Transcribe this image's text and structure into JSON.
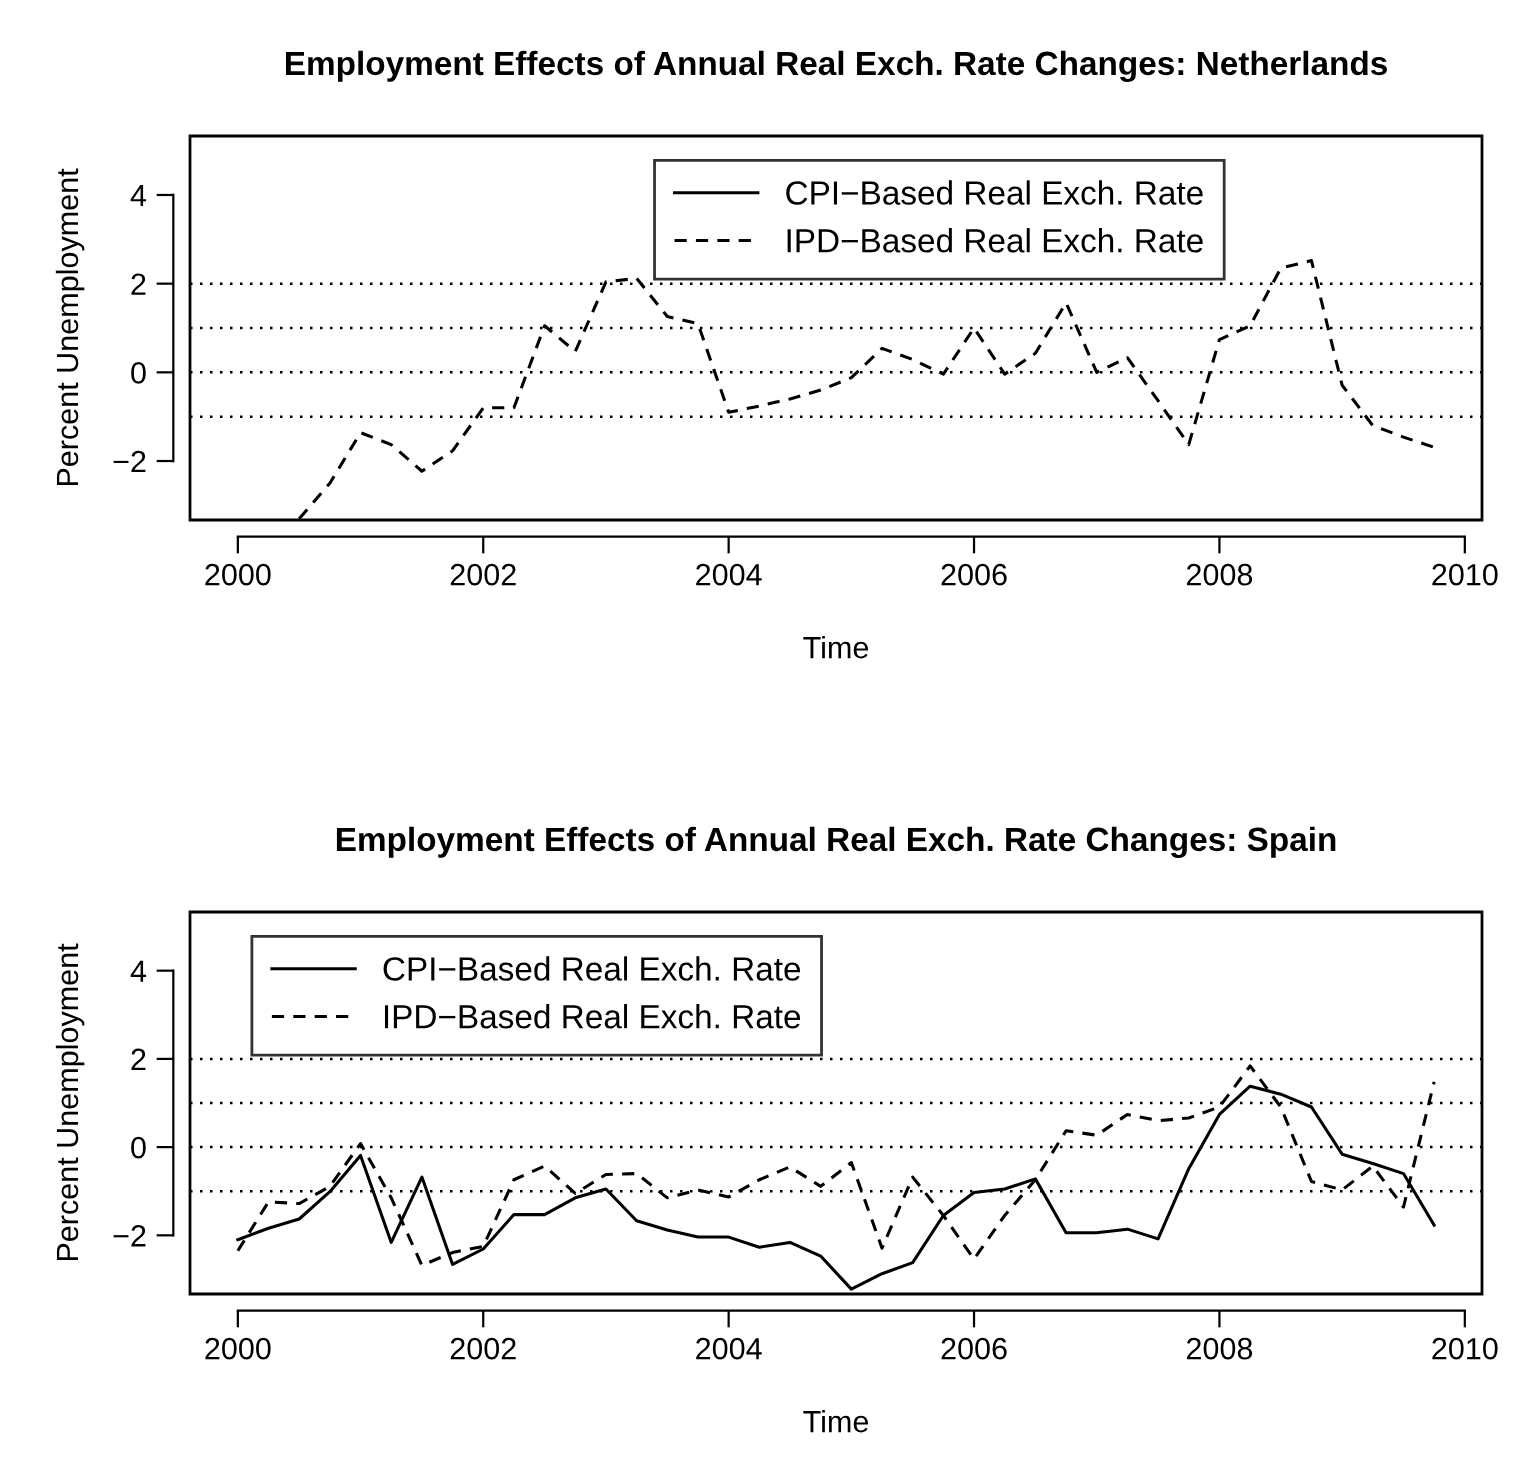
{
  "chart_data": [
    {
      "type": "line",
      "title": "Employment Effects of Annual Real Exch. Rate Changes: Netherlands",
      "xlabel": "Time",
      "ylabel": "Percent Unemployment",
      "series": [
        {
          "name": "CPI−Based Real Exch. Rate",
          "color": "#000000",
          "line_style": "solid"
        },
        {
          "name": "IPD−Based Real Exch. Rate",
          "color": "#000000",
          "line_style": "dashed",
          "x": [
            2000.5,
            2000.75,
            2001,
            2001.25,
            2001.5,
            2001.75,
            2002,
            2002.25,
            2002.5,
            2002.75,
            2003,
            2003.25,
            2003.5,
            2003.75,
            2004,
            2004.25,
            2004.5,
            2004.75,
            2005,
            2005.25,
            2005.5,
            2005.75,
            2006,
            2006.25,
            2006.5,
            2006.75,
            2007,
            2007.25,
            2007.5,
            2007.75,
            2008,
            2008.25,
            2008.5,
            2008.75,
            2009,
            2009.25,
            2009.5,
            2009.75
          ],
          "values": [
            -3.3,
            -2.5,
            -1.36,
            -1.63,
            -2.23,
            -1.77,
            -0.8,
            -0.8,
            1.05,
            0.47,
            2.04,
            2.12,
            1.26,
            1.1,
            -0.9,
            -0.76,
            -0.6,
            -0.4,
            -0.12,
            0.54,
            0.29,
            -0.04,
            1.0,
            -0.04,
            0.43,
            1.57,
            0,
            0.33,
            -0.64,
            -1.63,
            0.74,
            1.05,
            2.35,
            2.52,
            -0.29,
            -1.2,
            -1.46,
            -1.69
          ]
        }
      ],
      "xlim": [
        1999.61,
        2010.14
      ],
      "ylim": [
        -3.33,
        5.33
      ],
      "xticks": [
        2000,
        2002,
        2004,
        2006,
        2008,
        2010
      ],
      "yticks": [
        {
          "value": -2,
          "label": "−2"
        },
        0,
        2,
        4
      ],
      "ref_lines": [
        {
          "axis": "y",
          "value": 2,
          "line_style": "dotted"
        },
        {
          "axis": "y",
          "value": 1,
          "line_style": "dotted"
        },
        {
          "axis": "y",
          "value": 0,
          "line_style": "dotted"
        },
        {
          "axis": "y",
          "value": -1,
          "line_style": "dotted"
        }
      ],
      "legend": "top",
      "grid": false
    },
    {
      "type": "line",
      "title": "Employment Effects of Annual Real Exch. Rate Changes: Spain",
      "xlabel": "Time",
      "ylabel": "Percent Unemployment",
      "x": [
        2000,
        2000.25,
        2000.5,
        2000.75,
        2001,
        2001.25,
        2001.5,
        2001.75,
        2002,
        2002.25,
        2002.5,
        2002.75,
        2003,
        2003.25,
        2003.5,
        2003.75,
        2004,
        2004.25,
        2004.5,
        2004.75,
        2005,
        2005.25,
        2005.5,
        2005.75,
        2006,
        2006.25,
        2006.5,
        2006.75,
        2007,
        2007.25,
        2007.5,
        2007.75,
        2008,
        2008.25,
        2008.5,
        2008.75,
        2009,
        2009.25,
        2009.5,
        2009.75
      ],
      "series": [
        {
          "name": "CPI−Based Real Exch. Rate",
          "color": "#000000",
          "line_style": "solid",
          "values": [
            -2.1,
            -1.84,
            -1.63,
            -1.01,
            -0.19,
            -2.16,
            -0.68,
            -2.66,
            -2.31,
            -1.53,
            -1.53,
            -1.15,
            -0.95,
            -1.67,
            -1.88,
            -2.04,
            -2.04,
            -2.27,
            -2.16,
            -2.47,
            -3.22,
            -2.87,
            -2.62,
            -1.55,
            -1.03,
            -0.95,
            -0.72,
            -1.94,
            -1.94,
            -1.86,
            -2.08,
            -0.49,
            0.74,
            1.38,
            1.2,
            0.91,
            -0.16,
            -0.37,
            -0.6,
            -1.77
          ]
        },
        {
          "name": "IPD−Based Real Exch. Rate",
          "color": "#000000",
          "line_style": "dashed",
          "values": [
            -2.35,
            -1.24,
            -1.28,
            -0.89,
            0.08,
            -1.15,
            -2.68,
            -2.39,
            -2.25,
            -0.74,
            -0.43,
            -1.05,
            -0.62,
            -0.6,
            -1.15,
            -0.97,
            -1.13,
            -0.74,
            -0.45,
            -0.89,
            -0.35,
            -2.29,
            -0.68,
            -1.55,
            -2.54,
            -1.55,
            -0.74,
            0.37,
            0.27,
            0.74,
            0.6,
            0.66,
            0.91,
            1.84,
            0.91,
            -0.78,
            -0.97,
            -0.43,
            -1.36,
            1.48
          ]
        }
      ],
      "xlim": [
        1999.61,
        2010.14
      ],
      "ylim": [
        -3.33,
        5.33
      ],
      "xticks": [
        2000,
        2002,
        2004,
        2006,
        2008,
        2010
      ],
      "yticks": [
        {
          "value": -2,
          "label": "−2"
        },
        0,
        2,
        4
      ],
      "ref_lines": [
        {
          "axis": "y",
          "value": 2,
          "line_style": "dotted"
        },
        {
          "axis": "y",
          "value": 1,
          "line_style": "dotted"
        },
        {
          "axis": "y",
          "value": 0,
          "line_style": "dotted"
        },
        {
          "axis": "y",
          "value": -1,
          "line_style": "dotted"
        }
      ],
      "legend": "top left",
      "grid": false
    }
  ]
}
